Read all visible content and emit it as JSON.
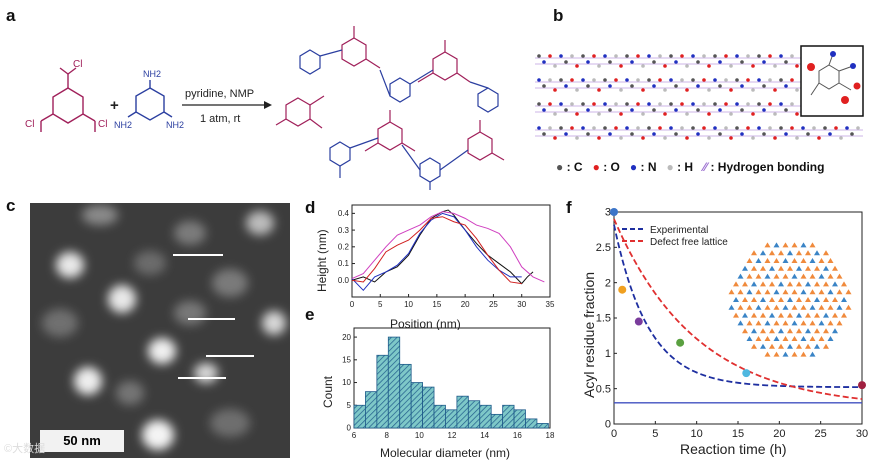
{
  "panels": {
    "a": "a",
    "b": "b",
    "c": "c",
    "d": "d",
    "e": "e",
    "f": "f"
  },
  "panel_a": {
    "reaction_conditions": [
      "pyridine, NMP",
      "1 atm, rt"
    ],
    "reactant1_groups": [
      "Cl",
      "Cl",
      "Cl"
    ],
    "reactant2_groups": [
      "NH2",
      "NH2",
      "NH2"
    ],
    "plus": "+",
    "colors": {
      "acyl": "#a0205a",
      "melamine": "#2b3fa0"
    }
  },
  "panel_b": {
    "legend": [
      {
        "symbol": "●",
        "label": ": C",
        "color": "#555555"
      },
      {
        "symbol": "●",
        "label": ": O",
        "color": "#e02020"
      },
      {
        "symbol": "●",
        "label": ": N",
        "color": "#2030c0"
      },
      {
        "symbol": "●",
        "label": ": H",
        "color": "#bbbbbb"
      },
      {
        "symbol": "⁄⁄",
        "label": ": Hydrogen bonding",
        "color": "#9b6fd0"
      }
    ]
  },
  "panel_c": {
    "scale_bar": "50 nm",
    "watermark": "©大数据"
  },
  "chart_data": [
    {
      "id": "d",
      "type": "line",
      "xlabel": "Position (nm)",
      "ylabel": "Height (nm)",
      "xlim": [
        0,
        35
      ],
      "ylim": [
        -0.1,
        0.45
      ],
      "xticks": [
        0,
        5,
        10,
        15,
        20,
        25,
        30,
        35
      ],
      "yticks": [
        0.0,
        0.1,
        0.2,
        0.3,
        0.4
      ],
      "ytick_labels": [
        "0.0",
        "0.1",
        "0.2",
        "0.3",
        "0.4"
      ],
      "series": [
        {
          "name": "black",
          "color": "#111111",
          "x": [
            0,
            2,
            4,
            6,
            8,
            10,
            12,
            14,
            16,
            17,
            18,
            20,
            22,
            24,
            26,
            28,
            30,
            31,
            32
          ],
          "y": [
            0.0,
            0.02,
            -0.01,
            0.05,
            0.08,
            0.15,
            0.27,
            0.37,
            0.41,
            0.42,
            0.39,
            0.3,
            0.22,
            0.15,
            0.1,
            0.05,
            -0.02,
            0.02,
            0.05
          ]
        },
        {
          "name": "blue",
          "color": "#2030c0",
          "x": [
            0,
            2,
            4,
            6,
            8,
            10,
            12,
            14,
            16,
            18,
            20,
            22,
            24,
            26,
            28,
            30
          ],
          "y": [
            0.01,
            -0.06,
            0.02,
            0.05,
            0.09,
            0.16,
            0.28,
            0.36,
            0.4,
            0.38,
            0.3,
            0.2,
            0.12,
            0.06,
            0.02,
            0.02
          ]
        },
        {
          "name": "red",
          "color": "#d02020",
          "x": [
            0,
            2,
            4,
            6,
            8,
            10,
            12,
            14,
            16,
            18,
            20,
            22,
            24,
            26,
            28,
            30
          ],
          "y": [
            0.0,
            -0.01,
            0.07,
            0.17,
            0.21,
            0.24,
            0.3,
            0.37,
            0.38,
            0.35,
            0.33,
            0.25,
            0.15,
            0.06,
            -0.01,
            -0.02
          ]
        },
        {
          "name": "magenta",
          "color": "#d040c0",
          "x": [
            0,
            2,
            4,
            6,
            8,
            10,
            12,
            14,
            16,
            18,
            20,
            22,
            24,
            26,
            28,
            30,
            32,
            34
          ],
          "y": [
            0.01,
            0.04,
            0.12,
            0.2,
            0.27,
            0.3,
            0.33,
            0.38,
            0.41,
            0.4,
            0.37,
            0.33,
            0.31,
            0.28,
            0.2,
            0.08,
            0.02,
            -0.01
          ]
        }
      ]
    },
    {
      "id": "e",
      "type": "bar",
      "xlabel": "Molecular diameter (nm)",
      "ylabel": "Count",
      "xlim": [
        6,
        18
      ],
      "ylim": [
        0,
        22
      ],
      "xticks": [
        6,
        8,
        10,
        12,
        14,
        16,
        18
      ],
      "yticks": [
        0,
        5,
        10,
        15,
        20
      ],
      "bin_width": 0.7,
      "bin_starts": [
        6.0,
        6.7,
        7.4,
        8.1,
        8.8,
        9.5,
        10.2,
        10.9,
        11.6,
        12.3,
        13.0,
        13.7,
        14.4,
        15.1,
        15.8,
        16.5,
        17.2
      ],
      "values": [
        5,
        8,
        16,
        20,
        14,
        10,
        9,
        5,
        4,
        7,
        6,
        5,
        3,
        5,
        4,
        2,
        1
      ],
      "fill": "#7ec8c8",
      "edge": "#1e5a8a"
    },
    {
      "id": "f",
      "type": "line",
      "xlabel": "Reaction time (h)",
      "ylabel": "Acyl residue fraction",
      "xlim": [
        0,
        30
      ],
      "ylim": [
        0,
        3
      ],
      "xticks": [
        0,
        5,
        10,
        15,
        20,
        25,
        30
      ],
      "yticks": [
        0,
        0.5,
        1,
        1.5,
        2,
        2.5,
        3
      ],
      "ytick_labels": [
        "0",
        "0.5",
        "1",
        "1.5",
        "2",
        "2.5",
        "3"
      ],
      "legend": [
        "Experimental",
        "Defect free lattice"
      ],
      "experimental_curve": {
        "color": "#1e2fa0",
        "a": 2.3,
        "b": 0.24,
        "c": 0.52
      },
      "defect_curve": {
        "color": "#e03030",
        "a": 2.68,
        "b": 0.1,
        "c": 0.22
      },
      "baseline": {
        "y": 0.3,
        "color": "#4050c0"
      },
      "points": [
        {
          "x": 0,
          "y": 3.0,
          "color": "#3b74c8"
        },
        {
          "x": 1,
          "y": 1.9,
          "color": "#f0a020"
        },
        {
          "x": 3,
          "y": 1.45,
          "color": "#7a3c9c"
        },
        {
          "x": 8,
          "y": 1.15,
          "color": "#5aa040"
        },
        {
          "x": 16,
          "y": 0.72,
          "color": "#4fb8e0"
        },
        {
          "x": 30,
          "y": 0.55,
          "color": "#a02040"
        }
      ]
    }
  ]
}
